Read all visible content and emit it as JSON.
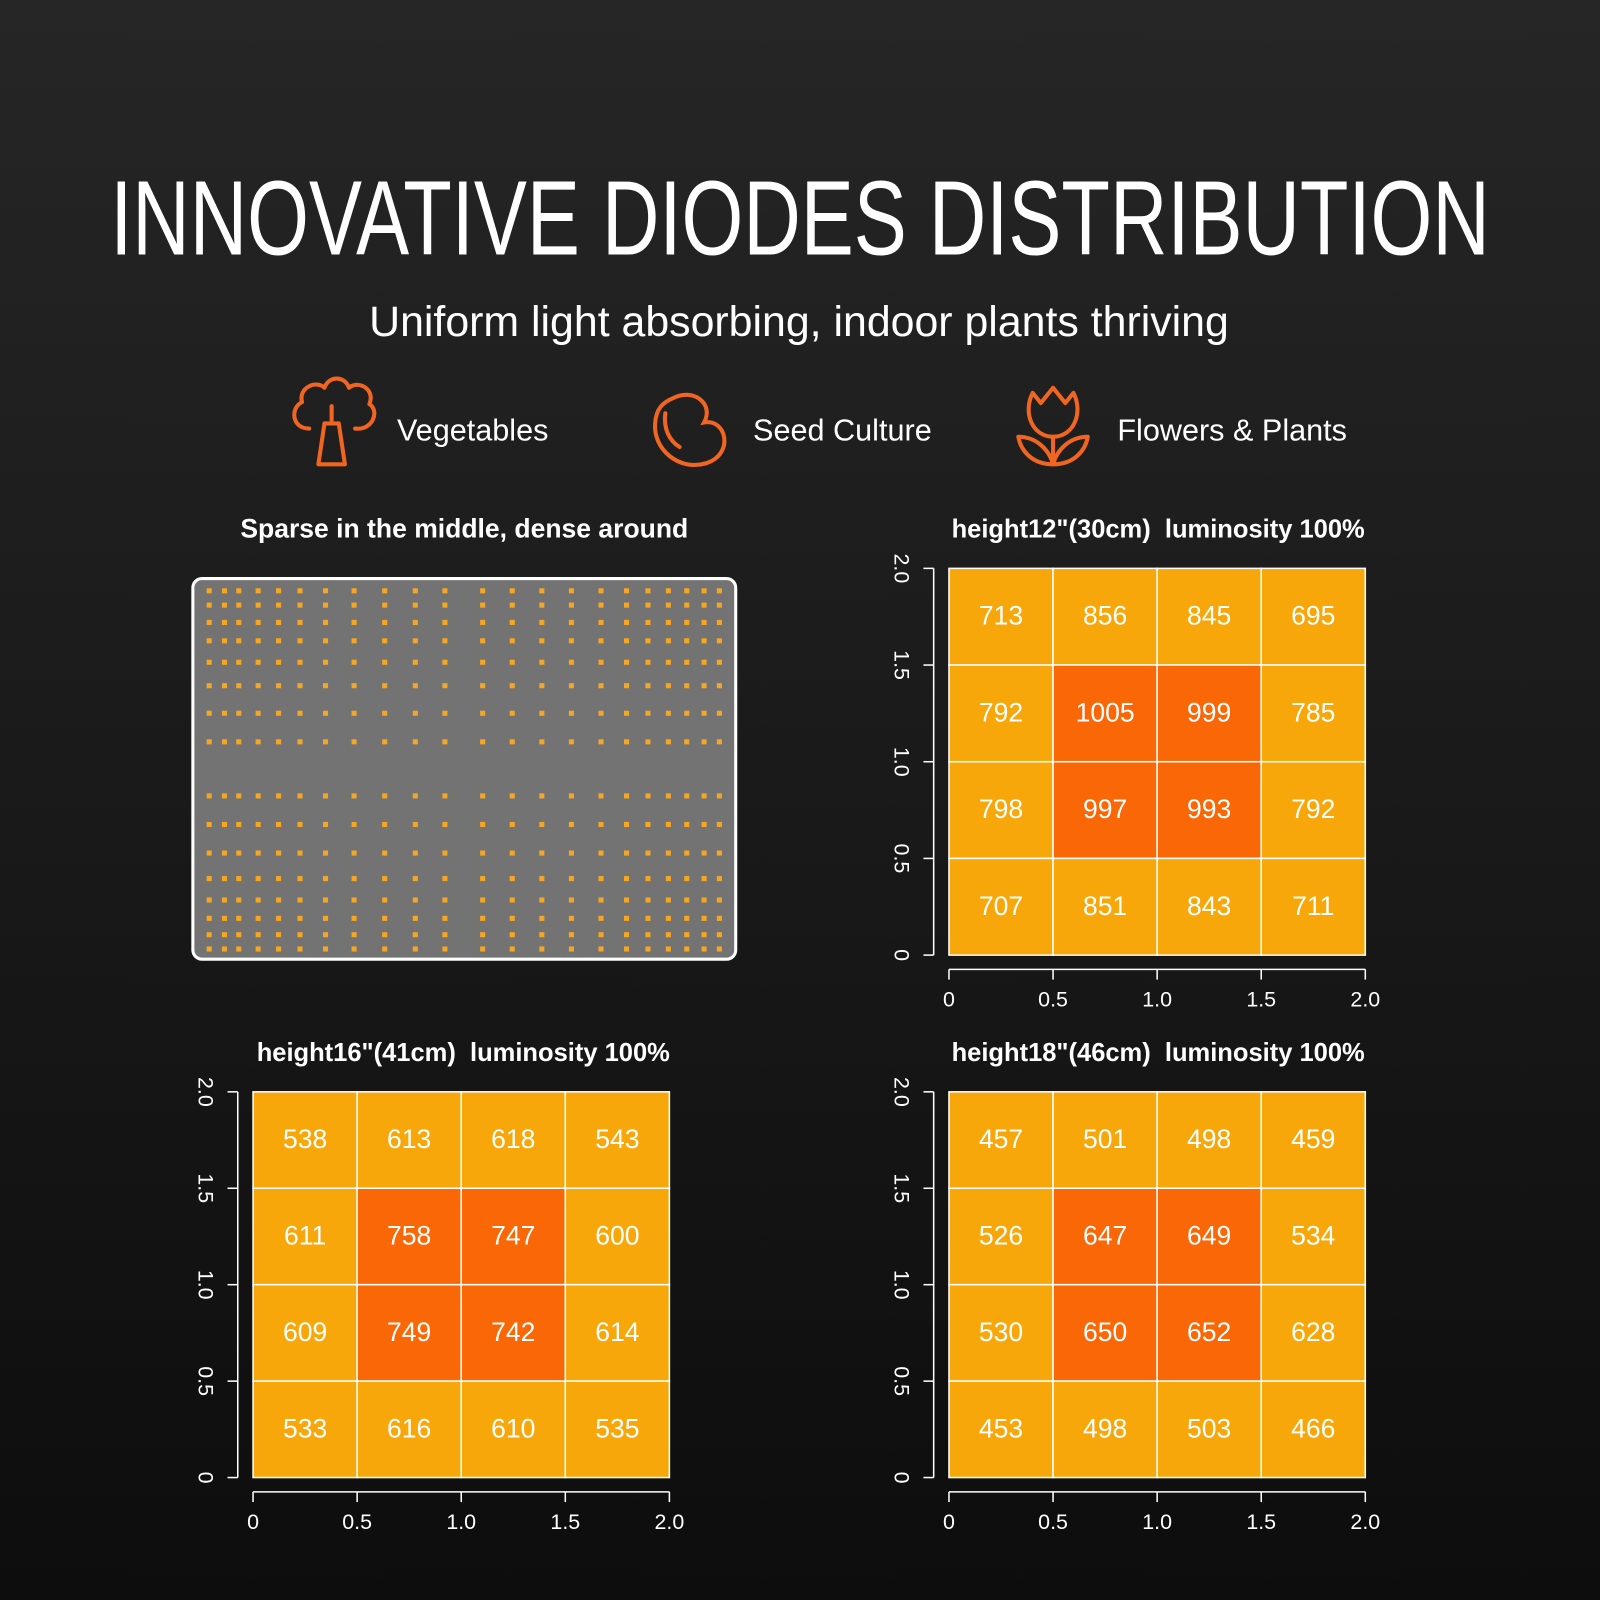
{
  "header": {
    "title": "INNOVATIVE DIODES DISTRIBUTION",
    "subtitle": "Uniform light absorbing, indoor plants thriving"
  },
  "uses": [
    "Vegetables",
    "Seed Culture",
    "Flowers & Plants"
  ],
  "panel": {
    "title": "Sparse in the middle, dense around"
  },
  "chart_data": [
    {
      "type": "heatmap",
      "title": "height12\"(30cm)  luminosity 100%",
      "xlim": [
        0,
        2
      ],
      "ylim": [
        0,
        2
      ],
      "xticks": [
        0,
        0.5,
        {
          "value": 1,
          "label": "1.0"
        },
        1.5,
        {
          "value": 2,
          "label": "2.0"
        }
      ],
      "yticks": [
        0,
        0.5,
        {
          "value": 1,
          "label": "1.0"
        },
        1.5,
        {
          "value": 2,
          "label": "2.0"
        }
      ],
      "values": [
        [
          713,
          856,
          845,
          695
        ],
        [
          792,
          1005,
          999,
          785
        ],
        [
          798,
          997,
          993,
          792
        ],
        [
          707,
          851,
          843,
          711
        ]
      ],
      "cell_colors": [
        [
          "#f7a70a",
          "#f7a70a",
          "#f7a70a",
          "#f7a70a"
        ],
        [
          "#f7a70a",
          "#f96707",
          "#f96707",
          "#f7a70a"
        ],
        [
          "#f7a70a",
          "#f96707",
          "#f96707",
          "#f7a70a"
        ],
        [
          "#f7a70a",
          "#f7a70a",
          "#f7a70a",
          "#f7a70a"
        ]
      ]
    },
    {
      "type": "heatmap",
      "title": "height16\"(41cm)  luminosity 100%",
      "xlim": [
        0,
        2
      ],
      "ylim": [
        0,
        2
      ],
      "xticks": [
        0,
        0.5,
        {
          "value": 1,
          "label": "1.0"
        },
        1.5,
        {
          "value": 2,
          "label": "2.0"
        }
      ],
      "yticks": [
        0,
        0.5,
        {
          "value": 1,
          "label": "1.0"
        },
        1.5,
        {
          "value": 2,
          "label": "2.0"
        }
      ],
      "values": [
        [
          538,
          613,
          618,
          543
        ],
        [
          611,
          758,
          747,
          600
        ],
        [
          609,
          749,
          742,
          614
        ],
        [
          533,
          616,
          610,
          535
        ]
      ],
      "cell_colors": [
        [
          "#f7a70a",
          "#f7a70a",
          "#f7a70a",
          "#f7a70a"
        ],
        [
          "#f7a70a",
          "#f96707",
          "#f96707",
          "#f7a70a"
        ],
        [
          "#f7a70a",
          "#f96707",
          "#f96707",
          "#f7a70a"
        ],
        [
          "#f7a70a",
          "#f7a70a",
          "#f7a70a",
          "#f7a70a"
        ]
      ]
    },
    {
      "type": "heatmap",
      "title": "height18\"(46cm)  luminosity 100%",
      "xlim": [
        0,
        2
      ],
      "ylim": [
        0,
        2
      ],
      "xticks": [
        0,
        0.5,
        {
          "value": 1,
          "label": "1.0"
        },
        1.5,
        {
          "value": 2,
          "label": "2.0"
        }
      ],
      "yticks": [
        0,
        0.5,
        {
          "value": 1,
          "label": "1.0"
        },
        1.5,
        {
          "value": 2,
          "label": "2.0"
        }
      ],
      "values": [
        [
          457,
          501,
          498,
          459
        ],
        [
          526,
          647,
          649,
          534
        ],
        [
          530,
          650,
          652,
          628
        ],
        [
          453,
          498,
          503,
          466
        ]
      ],
      "cell_colors": [
        [
          "#f7a70a",
          "#f7a70a",
          "#f7a70a",
          "#f7a70a"
        ],
        [
          "#f7a70a",
          "#f96707",
          "#f96707",
          "#f7a70a"
        ],
        [
          "#f7a70a",
          "#f96707",
          "#f96707",
          "#f7a70a"
        ],
        [
          "#f7a70a",
          "#f7a70a",
          "#f7a70a",
          "#f7a70a"
        ]
      ]
    }
  ]
}
